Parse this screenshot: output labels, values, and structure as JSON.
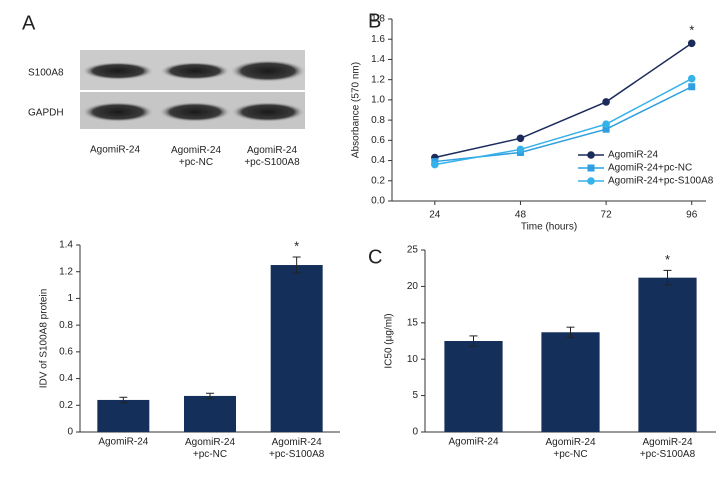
{
  "panel_labels": [
    "A",
    "B",
    "C"
  ],
  "blot": {
    "rows": [
      "S100A8",
      "GAPDH"
    ],
    "lanes": [
      "AgomiR-24",
      "AgomiR-24\n+pc-NC",
      "AgomiR-24\n+pc-S100A8"
    ]
  },
  "chart_data": [
    {
      "type": "bar",
      "ylabel": "IDV of S100A8 protein",
      "categories": [
        "AgomiR-24",
        "AgomiR-24\n+pc-NC",
        "AgomiR-24\n+pc-S100A8"
      ],
      "values": [
        0.24,
        0.27,
        1.25
      ],
      "errors": [
        0.02,
        0.02,
        0.06
      ],
      "color": "#14305a",
      "ylim": [
        0,
        1.4
      ],
      "yticks": [
        0,
        0.2,
        0.4,
        0.6,
        0.8,
        1,
        1.2,
        1.4
      ],
      "annotation": "*"
    },
    {
      "type": "line",
      "xlabel": "Time (hours)",
      "ylabel": "Absorbance (570 nm)",
      "x": [
        24,
        48,
        72,
        96
      ],
      "xlim": [
        12,
        100
      ],
      "xticks": [
        24,
        48,
        72,
        96
      ],
      "ylim": [
        0,
        1.8
      ],
      "yticks": [
        {
          "value": 0,
          "label": "0.0"
        },
        0.2,
        0.4,
        0.6,
        0.8,
        {
          "value": 1,
          "label": "1.0"
        },
        1.2,
        1.4,
        1.6,
        1.8
      ],
      "series": [
        {
          "name": "AgomiR-24",
          "color": "#1b2c5c",
          "marker": "circle",
          "values": [
            0.43,
            0.62,
            0.98,
            1.56
          ]
        },
        {
          "name": "AgomiR-24+pc-NC",
          "color": "#2e9fe0",
          "marker": "square",
          "values": [
            0.39,
            0.48,
            0.71,
            1.13
          ]
        },
        {
          "name": "AgomiR-24+pc-S100A8",
          "color": "#36b2ea",
          "marker": "circle",
          "values": [
            0.36,
            0.51,
            0.76,
            1.21
          ]
        }
      ],
      "annotation": "*"
    },
    {
      "type": "bar",
      "ylabel": "IC50 (µg/ml)",
      "categories": [
        "AgomiR-24",
        "AgomiR-24\n+pc-NC",
        "AgomiR-24\n+pc-S100A8"
      ],
      "values": [
        12.5,
        13.7,
        21.2
      ],
      "errors": [
        0.7,
        0.7,
        1.0
      ],
      "color": "#14305a",
      "ylim": [
        0,
        25
      ],
      "yticks": [
        0,
        5,
        10,
        15,
        20,
        25
      ],
      "annotation": "*"
    }
  ]
}
